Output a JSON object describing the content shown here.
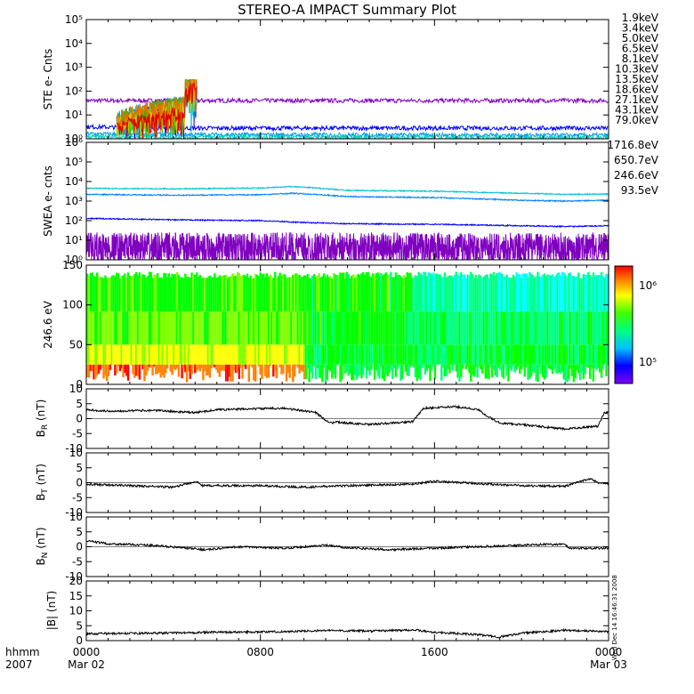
{
  "title": "STEREO-A IMPACT Summary Plot",
  "time_axis": {
    "corner_top": "hhmm",
    "corner_bottom": "2007",
    "ticks": [
      {
        "t": 0,
        "label": "0000",
        "sub": "Mar 02"
      },
      {
        "t": 8,
        "label": "0800",
        "sub": ""
      },
      {
        "t": 16,
        "label": "1600",
        "sub": ""
      },
      {
        "t": 24,
        "label": "0000",
        "sub": "Mar 03"
      }
    ],
    "range_hours": [
      0,
      24
    ]
  },
  "colors": {
    "spectrum": [
      "#8000ff",
      "#0000ff",
      "#0080ff",
      "#00ffff",
      "#00ff80",
      "#00ff00",
      "#80ff00",
      "#ffff00",
      "#ff8000",
      "#ff0000"
    ]
  },
  "side_note": "Wed Dec 14 16:46:31 2008",
  "chart_data": [
    {
      "type": "line",
      "panel": "ste",
      "ylabel": "STE e- Cnts",
      "yscale": "log",
      "ylim": [
        1,
        100000
      ],
      "yticks": [
        "10⁰",
        "10¹",
        "10²",
        "10³",
        "10⁴",
        "10⁵"
      ],
      "legend": [
        {
          "label": "1.9keV",
          "color": "#8000c0"
        },
        {
          "label": "3.4keV",
          "color": "#4000d0"
        },
        {
          "label": "5.0keV",
          "color": "#0000ff"
        },
        {
          "label": "6.5keV",
          "color": "#00a0e0"
        },
        {
          "label": "8.1keV",
          "color": "#00d0c0"
        },
        {
          "label": "10.3keV",
          "color": "#00d060"
        },
        {
          "label": "13.5keV",
          "color": "#20c000"
        },
        {
          "label": "18.6keV",
          "color": "#a0d000"
        },
        {
          "label": "27.1keV",
          "color": "#e0c000"
        },
        {
          "label": "43.1keV",
          "color": "#e07000"
        },
        {
          "label": "79.0keV",
          "color": "#e00000"
        }
      ],
      "series": [
        {
          "color": "#8000c0",
          "x": [
            0,
            24
          ],
          "y": [
            40,
            40
          ]
        },
        {
          "color": "#0000ff",
          "x": [
            0,
            1.5,
            5,
            24
          ],
          "y": [
            3.2,
            3.0,
            2.8,
            2.8
          ]
        },
        {
          "color": "#00a0e0",
          "x": [
            0,
            5,
            24
          ],
          "y": [
            1.6,
            1.5,
            1.4
          ]
        },
        {
          "color": "#00d0c0",
          "x": [
            0,
            5,
            24
          ],
          "y": [
            1.2,
            1.2,
            1.1
          ]
        }
      ],
      "burst": {
        "x": [
          1.4,
          5.1
        ],
        "peak": 300
      }
    },
    {
      "type": "line",
      "panel": "swea",
      "ylabel": "SWEA e- cnts",
      "yscale": "log",
      "ylim": [
        1,
        1000000
      ],
      "yticks": [
        "10⁰",
        "10¹",
        "10²",
        "10³",
        "10⁴",
        "10⁵",
        "10⁶"
      ],
      "legend": [
        {
          "label": "1716.8eV",
          "color": "#8000c0"
        },
        {
          "label": "650.7eV",
          "color": "#0000ff"
        },
        {
          "label": "246.6eV",
          "color": "#0080ff"
        },
        {
          "label": "93.5eV",
          "color": "#00c0d0"
        }
      ],
      "series": [
        {
          "name": "93.5eV",
          "color": "#00c0d0",
          "x": [
            0,
            4,
            8,
            9.5,
            12,
            16,
            18,
            20,
            22,
            24
          ],
          "y": [
            4500,
            4200,
            4600,
            5500,
            3500,
            3200,
            2800,
            2500,
            2200,
            2300
          ]
        },
        {
          "name": "246.6eV",
          "color": "#0080ff",
          "x": [
            0,
            4,
            8,
            9.5,
            12,
            16,
            18,
            20,
            22,
            24
          ],
          "y": [
            2200,
            2000,
            2100,
            2500,
            1700,
            1500,
            1300,
            1100,
            1000,
            1100
          ]
        },
        {
          "name": "650.7eV",
          "color": "#0000ff",
          "x": [
            0,
            4,
            8,
            10,
            12,
            16,
            18,
            20,
            22,
            24
          ],
          "y": [
            130,
            110,
            100,
            80,
            70,
            65,
            60,
            55,
            50,
            55
          ]
        },
        {
          "name": "1716.8eV",
          "color": "#8000c0",
          "x": [
            0,
            24
          ],
          "y": [
            4,
            4
          ]
        }
      ]
    },
    {
      "type": "heatmap",
      "panel": "pad",
      "ylabel": "246.6 eV",
      "ylim": [
        0,
        180
      ],
      "yticks": [
        "0",
        "50",
        "100",
        "150"
      ],
      "colorbar": {
        "scale": "log",
        "range": [
          50000,
          2000000
        ],
        "ticks": [
          "10⁵",
          "10⁶"
        ]
      }
    },
    {
      "type": "line",
      "panel": "br",
      "ylabel": "B_R (nT)",
      "ylim": [
        -10,
        10
      ],
      "yticks": [
        "-10",
        "-5",
        "0",
        "5",
        "10"
      ],
      "series": [
        {
          "color": "#000000",
          "x": [
            0,
            1,
            3,
            5,
            6,
            9,
            10.5,
            11.2,
            11.5,
            13,
            15,
            15.5,
            17,
            18,
            18.5,
            19,
            20,
            22,
            23.5,
            23.8,
            24
          ],
          "y": [
            3,
            2.5,
            2.8,
            2,
            3,
            3.5,
            2.2,
            -1.5,
            -1.2,
            -2,
            -1,
            3.5,
            4,
            3,
            0.5,
            -1.5,
            -2,
            -3.5,
            -2.5,
            2,
            2
          ]
        }
      ]
    },
    {
      "type": "line",
      "panel": "bt",
      "ylabel": "B_T (nT)",
      "ylim": [
        -10,
        10
      ],
      "yticks": [
        "-10",
        "-5",
        "0",
        "5",
        "10"
      ],
      "series": [
        {
          "color": "#000000",
          "x": [
            0,
            2,
            4,
            5.1,
            5.3,
            8,
            10,
            12,
            15,
            16,
            18,
            20,
            22,
            23.2,
            23.5,
            24
          ],
          "y": [
            -0.5,
            -1,
            -1.5,
            0.5,
            -1,
            -1,
            -1.5,
            -1,
            -0.5,
            0.5,
            -0.3,
            -1,
            -1.2,
            1.5,
            0,
            -0.5
          ]
        }
      ]
    },
    {
      "type": "line",
      "panel": "bn",
      "ylabel": "B_N (nT)",
      "ylim": [
        -10,
        10
      ],
      "yticks": [
        "-10",
        "-5",
        "0",
        "5",
        "10"
      ],
      "series": [
        {
          "color": "#000000",
          "x": [
            0,
            1,
            3,
            5.5,
            7,
            9,
            11,
            12,
            14,
            16,
            18,
            20,
            21,
            22,
            22.2,
            24
          ],
          "y": [
            2,
            1,
            0.5,
            -1,
            0,
            -0.5,
            0.5,
            -0.3,
            -1,
            -0.5,
            0,
            0.5,
            0.8,
            0.8,
            -0.5,
            -0.5
          ]
        }
      ]
    },
    {
      "type": "line",
      "panel": "bmag",
      "ylabel": "|B| (nT)",
      "ylim": [
        0,
        20
      ],
      "yticks": [
        "0",
        "5",
        "10",
        "15",
        "20"
      ],
      "series": [
        {
          "color": "#000000",
          "x": [
            0,
            3,
            6,
            9,
            11,
            13,
            15,
            16,
            18,
            19,
            20,
            22,
            24
          ],
          "y": [
            2.3,
            2.5,
            2.8,
            3,
            3.4,
            3.2,
            3.6,
            2.8,
            2,
            1.2,
            2.5,
            3.5,
            3
          ]
        }
      ]
    }
  ]
}
